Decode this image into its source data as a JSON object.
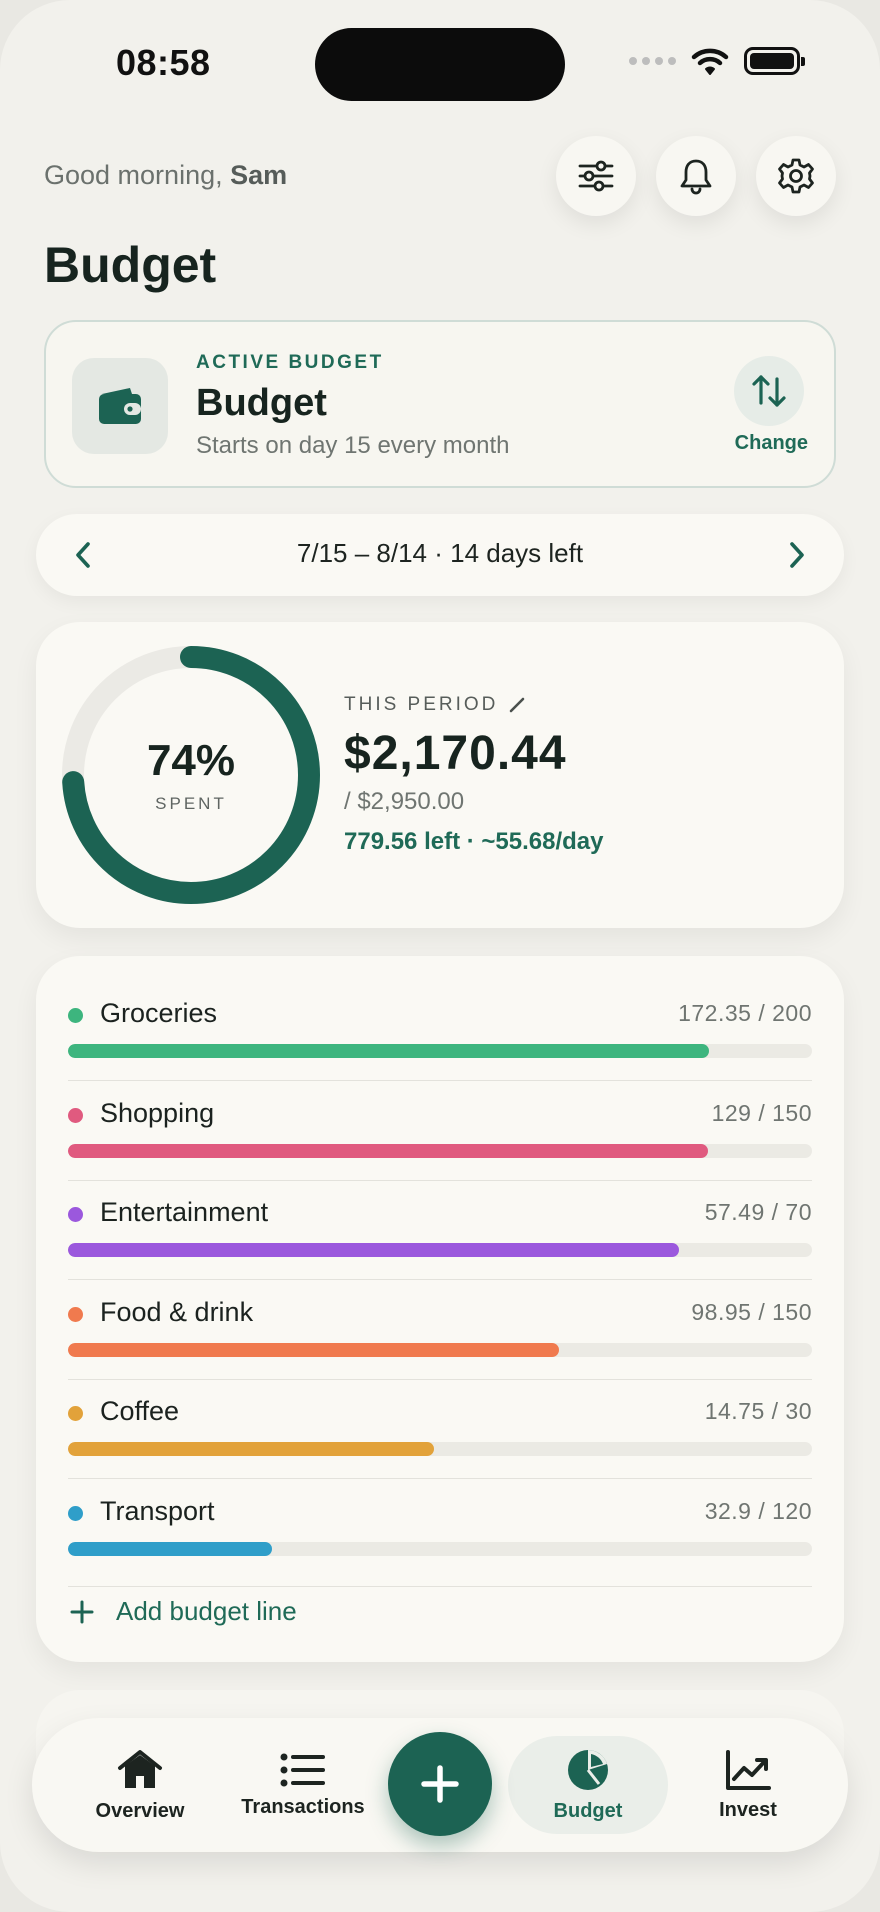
{
  "status": {
    "time": "08:58"
  },
  "header": {
    "greeting_prefix": "Good morning,",
    "greeting_name": "Sam",
    "title": "Budget",
    "icons": [
      "sliders-icon",
      "bell-icon",
      "gear-icon"
    ]
  },
  "active_budget": {
    "label": "ACTIVE BUDGET",
    "name": "Budget",
    "subtitle": "Starts on day 15 every month",
    "change_label": "Change",
    "icon": "wallet-icon"
  },
  "period": {
    "text": "7/15 – 8/14 · 14 days left"
  },
  "summary": {
    "percent_text": "74%",
    "percent_value": 0.74,
    "spent_label": "SPENT",
    "period_label": "THIS PERIOD",
    "amount": "$2,170.44",
    "total": "/ $2,950.00",
    "left_text": "779.56 left · ~55.68/day",
    "accent_color": "#1c6353"
  },
  "categories": [
    {
      "name": "Groceries",
      "amount": "172.35 / 200",
      "spent": 172.35,
      "budget": 200,
      "color": "#3db57e"
    },
    {
      "name": "Shopping",
      "amount": "129 / 150",
      "spent": 129,
      "budget": 150,
      "color": "#e05a7f"
    },
    {
      "name": "Entertainment",
      "amount": "57.49 / 70",
      "spent": 57.49,
      "budget": 70,
      "color": "#9b58dd"
    },
    {
      "name": "Food & drink",
      "amount": "98.95 / 150",
      "spent": 98.95,
      "budget": 150,
      "color": "#f07a4e"
    },
    {
      "name": "Coffee",
      "amount": "14.75 / 30",
      "spent": 14.75,
      "budget": 30,
      "color": "#e2a23a"
    },
    {
      "name": "Transport",
      "amount": "32.9 / 120",
      "spent": 32.9,
      "budget": 120,
      "color": "#2f9ec9"
    }
  ],
  "add_line_label": "Add budget line",
  "tabbar": {
    "tabs": [
      {
        "label": "Overview",
        "icon": "home-icon"
      },
      {
        "label": "Transactions",
        "icon": "list-icon"
      },
      {
        "label": "Budget",
        "icon": "pie-chart-icon",
        "active": true
      },
      {
        "label": "Invest",
        "icon": "trend-chart-icon"
      }
    ],
    "fab_icon": "plus-icon"
  }
}
